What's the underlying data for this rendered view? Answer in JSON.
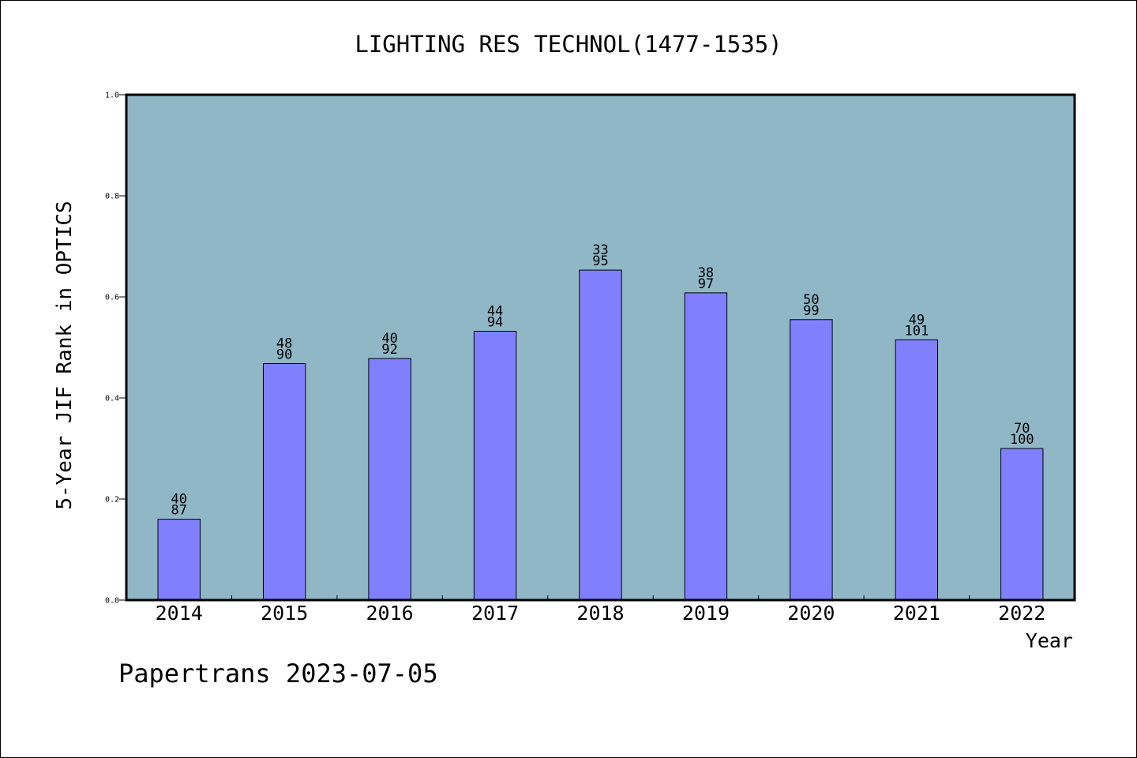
{
  "chart_data": {
    "type": "bar",
    "title": "LIGHTING RES TECHNOL(1477-1535)",
    "xlabel": "Year",
    "ylabel": "5-Year JIF Rank in OPTICS",
    "footer": "Papertrans 2023-07-05",
    "categories": [
      "2014",
      "2015",
      "2016",
      "2017",
      "2018",
      "2019",
      "2020",
      "2021",
      "2022"
    ],
    "values": [
      0.16,
      0.468,
      0.478,
      0.532,
      0.653,
      0.608,
      0.555,
      0.515,
      0.3
    ],
    "labels": [
      [
        "40",
        "87"
      ],
      [
        "48",
        "90"
      ],
      [
        "40",
        "92"
      ],
      [
        "44",
        "94"
      ],
      [
        "33",
        "95"
      ],
      [
        "38",
        "97"
      ],
      [
        "50",
        "99"
      ],
      [
        "49",
        "101"
      ],
      [
        "70",
        "100"
      ]
    ],
    "ylim": [
      0,
      1.0
    ],
    "yticks": [
      "0.0",
      "0.2",
      "0.4",
      "0.6",
      "0.8",
      "1.0"
    ],
    "colors": {
      "plot_bg": "#8fb7c6",
      "bar": "#8080ff",
      "bar_edge": "#000000"
    }
  }
}
